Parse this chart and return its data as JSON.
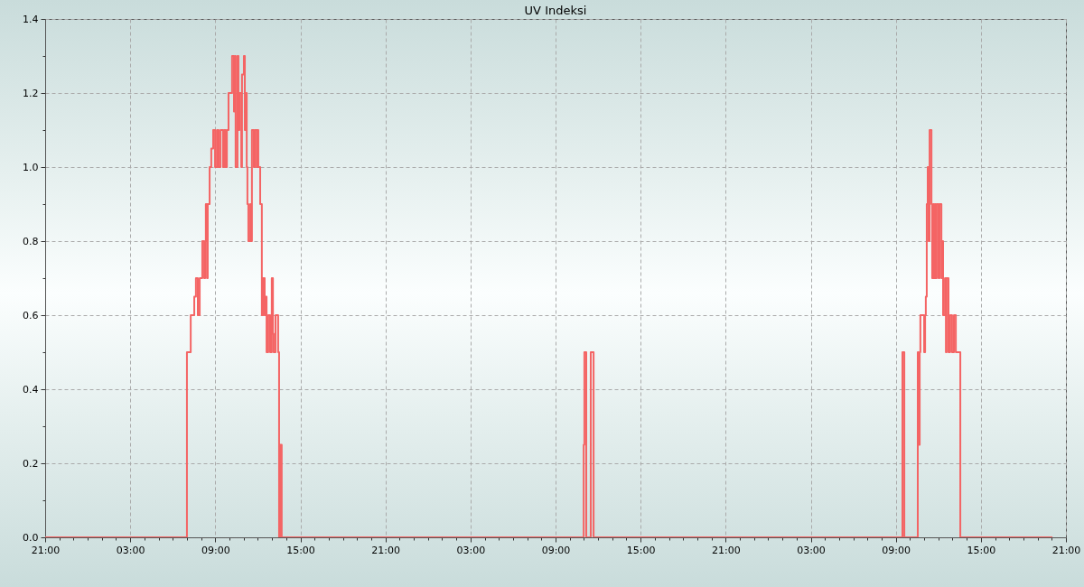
{
  "chart_data": {
    "type": "step",
    "title": "UV Indeksi",
    "x": [
      "--01-01T21:00",
      "--01-02T07:00",
      "--01-02T07:16",
      "--01-02T07:31",
      "--01-02T07:38",
      "--01-02T07:46",
      "--01-02T07:54",
      "--01-02T08:05",
      "--01-02T08:13",
      "--01-02T08:17",
      "--01-02T08:20",
      "--01-02T08:25",
      "--01-02T08:28",
      "--01-02T08:36",
      "--01-02T08:43",
      "--01-02T08:51",
      "--01-02T08:59",
      "--01-02T09:07",
      "--01-02T09:14",
      "--01-02T09:22",
      "--01-02T09:33",
      "--01-02T09:37",
      "--01-02T09:44",
      "--01-02T09:49",
      "--01-02T09:56",
      "--01-02T10:11",
      "--01-02T10:19",
      "--01-02T10:23",
      "--01-02T10:26",
      "--01-02T10:34",
      "--01-02T10:38",
      "--01-02T10:42",
      "--01-02T10:50",
      "--01-02T10:53",
      "--01-02T11:01",
      "--01-02T11:05",
      "--01-02T11:09",
      "--01-02T11:13",
      "--01-02T11:16",
      "--01-02T11:20",
      "--01-02T11:28",
      "--01-02T11:32",
      "--01-02T11:35",
      "--01-02T11:43",
      "--01-02T11:47",
      "--01-02T11:55",
      "--01-02T11:58",
      "--01-02T12:02",
      "--01-02T12:10",
      "--01-02T12:17",
      "--01-02T12:22",
      "--01-02T12:29",
      "--01-02T12:33",
      "--01-02T12:37",
      "--01-02T12:44",
      "--01-02T12:52",
      "--01-02T12:59",
      "--01-02T13:04",
      "--01-02T13:07",
      "--01-02T13:15",
      "--01-02T13:26",
      "--01-02T13:30",
      "--01-02T13:34",
      "--01-02T13:41",
      "--01-03T10:59",
      "--01-03T11:02",
      "--01-03T11:10",
      "--01-03T11:29",
      "--01-03T11:41",
      "--01-04T09:28",
      "--01-04T09:36",
      "--01-04T10:33",
      "--01-04T10:37",
      "--01-04T10:41",
      "--01-04T10:44",
      "--01-04T11:00",
      "--01-04T11:04",
      "--01-04T11:07",
      "--01-04T11:11",
      "--01-04T11:15",
      "--01-04T11:19",
      "--01-04T11:23",
      "--01-04T11:31",
      "--01-04T11:34",
      "--01-04T11:38",
      "--01-04T11:42",
      "--01-04T11:46",
      "--01-04T11:49",
      "--01-04T11:53",
      "--01-04T12:01",
      "--01-04T12:05",
      "--01-04T12:13",
      "--01-04T12:16",
      "--01-04T12:20",
      "--01-04T12:28",
      "--01-04T12:32",
      "--01-04T12:35",
      "--01-04T12:43",
      "--01-04T12:50",
      "--01-04T12:58",
      "--01-04T13:06",
      "--01-04T13:14",
      "--01-04T13:33",
      "--01-04T20:03"
    ],
    "series": [
      {
        "color": "#f46464",
        "values": [
          0,
          0.5,
          0.6,
          0.65,
          0.7,
          0.6,
          0.7,
          0.8,
          0.7,
          0.8,
          0.9,
          0.7,
          0.9,
          1.0,
          1.05,
          1.1,
          1.0,
          1.1,
          1.0,
          1.1,
          1.0,
          1.1,
          1.0,
          1.1,
          1.2,
          1.3,
          1.15,
          1.3,
          1.0,
          1.3,
          1.1,
          1.2,
          1.0,
          1.25,
          1.3,
          1.1,
          1.2,
          1.0,
          0.9,
          0.8,
          0.9,
          0.8,
          1.1,
          1.0,
          1.1,
          1.0,
          1.1,
          1.0,
          0.9,
          0.6,
          0.7,
          0.6,
          0.65,
          0.5,
          0.6,
          0.5,
          0.7,
          0.55,
          0.5,
          0.6,
          0.5,
          0,
          0.25,
          0,
          0.25,
          0.5,
          0,
          0.5,
          0,
          0.5,
          0,
          0.5,
          0.25,
          0.5,
          0.6,
          0.5,
          0.6,
          0.65,
          0.9,
          1.0,
          0.8,
          1.1,
          0.9,
          0.7,
          0.9,
          0.7,
          0.9,
          0.7,
          0.9,
          0.7,
          0.9,
          0.7,
          0.8,
          0.6,
          0.7,
          0.5,
          0.7,
          0.5,
          0.6,
          0.5,
          0.6,
          0.5,
          0,
          0
        ]
      }
    ],
    "xlim": [
      "--01-01T21:00",
      "--01-04T21:00"
    ],
    "xticks": [
      {
        "value": "--01-01T21:00",
        "label": "21:00"
      },
      {
        "value": "--01-01T22:00",
        "label": null
      },
      {
        "value": "--01-01T23:00",
        "label": null
      },
      {
        "value": "--01-02T00:00",
        "label": null
      },
      {
        "value": "--01-02T01:00",
        "label": null
      },
      {
        "value": "--01-02T02:00",
        "label": null
      },
      {
        "value": "--01-02T03:00",
        "label": "03:00"
      },
      {
        "value": "--01-02T04:00",
        "label": null
      },
      {
        "value": "--01-02T05:00",
        "label": null
      },
      {
        "value": "--01-02T06:00",
        "label": null
      },
      {
        "value": "--01-02T07:00",
        "label": null
      },
      {
        "value": "--01-02T08:00",
        "label": null
      },
      {
        "value": "--01-02T09:00",
        "label": "09:00"
      },
      {
        "value": "--01-02T10:00",
        "label": null
      },
      {
        "value": "--01-02T11:00",
        "label": null
      },
      {
        "value": "--01-02T12:00",
        "label": null
      },
      {
        "value": "--01-02T13:00",
        "label": null
      },
      {
        "value": "--01-02T14:00",
        "label": null
      },
      {
        "value": "--01-02T15:00",
        "label": "15:00"
      },
      {
        "value": "--01-02T16:00",
        "label": null
      },
      {
        "value": "--01-02T17:00",
        "label": null
      },
      {
        "value": "--01-02T18:00",
        "label": null
      },
      {
        "value": "--01-02T19:00",
        "label": null
      },
      {
        "value": "--01-02T20:00",
        "label": null
      },
      {
        "value": "--01-02T21:00",
        "label": "21:00"
      },
      {
        "value": "--01-02T22:00",
        "label": null
      },
      {
        "value": "--01-02T23:00",
        "label": null
      },
      {
        "value": "--01-03T00:00",
        "label": null
      },
      {
        "value": "--01-03T01:00",
        "label": null
      },
      {
        "value": "--01-03T02:00",
        "label": null
      },
      {
        "value": "--01-03T03:00",
        "label": "03:00"
      },
      {
        "value": "--01-03T04:00",
        "label": null
      },
      {
        "value": "--01-03T05:00",
        "label": null
      },
      {
        "value": "--01-03T06:00",
        "label": null
      },
      {
        "value": "--01-03T07:00",
        "label": null
      },
      {
        "value": "--01-03T08:00",
        "label": null
      },
      {
        "value": "--01-03T09:00",
        "label": "09:00"
      },
      {
        "value": "--01-03T10:00",
        "label": null
      },
      {
        "value": "--01-03T11:00",
        "label": null
      },
      {
        "value": "--01-03T12:00",
        "label": null
      },
      {
        "value": "--01-03T13:00",
        "label": null
      },
      {
        "value": "--01-03T14:00",
        "label": null
      },
      {
        "value": "--01-03T15:00",
        "label": "15:00"
      },
      {
        "value": "--01-03T16:00",
        "label": null
      },
      {
        "value": "--01-03T17:00",
        "label": null
      },
      {
        "value": "--01-03T18:00",
        "label": null
      },
      {
        "value": "--01-03T19:00",
        "label": null
      },
      {
        "value": "--01-03T20:00",
        "label": null
      },
      {
        "value": "--01-03T21:00",
        "label": "21:00"
      },
      {
        "value": "--01-03T22:00",
        "label": null
      },
      {
        "value": "--01-03T23:00",
        "label": null
      },
      {
        "value": "--01-04T00:00",
        "label": null
      },
      {
        "value": "--01-04T01:00",
        "label": null
      },
      {
        "value": "--01-04T02:00",
        "label": null
      },
      {
        "value": "--01-04T03:00",
        "label": "03:00"
      },
      {
        "value": "--01-04T04:00",
        "label": null
      },
      {
        "value": "--01-04T05:00",
        "label": null
      },
      {
        "value": "--01-04T06:00",
        "label": null
      },
      {
        "value": "--01-04T07:00",
        "label": null
      },
      {
        "value": "--01-04T08:00",
        "label": null
      },
      {
        "value": "--01-04T09:00",
        "label": "09:00"
      },
      {
        "value": "--01-04T10:00",
        "label": null
      },
      {
        "value": "--01-04T11:00",
        "label": null
      },
      {
        "value": "--01-04T12:00",
        "label": null
      },
      {
        "value": "--01-04T13:00",
        "label": null
      },
      {
        "value": "--01-04T14:00",
        "label": null
      },
      {
        "value": "--01-04T15:00",
        "label": "15:00"
      },
      {
        "value": "--01-04T16:00",
        "label": null
      },
      {
        "value": "--01-04T17:00",
        "label": null
      },
      {
        "value": "--01-04T18:00",
        "label": null
      },
      {
        "value": "--01-04T19:00",
        "label": null
      },
      {
        "value": "--01-04T20:00",
        "label": null
      },
      {
        "value": "--01-04T21:00",
        "label": "21:00"
      }
    ],
    "ylim": [
      0,
      1.4
    ],
    "yticks": [
      {
        "value": 0,
        "label": "0.0"
      },
      {
        "value": 0.1,
        "label": null
      },
      {
        "value": 0.2,
        "label": "0.2"
      },
      {
        "value": 0.3,
        "label": null
      },
      {
        "value": 0.4,
        "label": "0.4"
      },
      {
        "value": 0.5,
        "label": null
      },
      {
        "value": 0.6,
        "label": "0.6"
      },
      {
        "value": 0.7,
        "label": null
      },
      {
        "value": 0.8,
        "label": "0.8"
      },
      {
        "value": 0.9,
        "label": null
      },
      {
        "value": 1.0,
        "label": "1.0"
      },
      {
        "value": 1.1,
        "label": null
      },
      {
        "value": 1.2,
        "label": "1.2"
      },
      {
        "value": 1.3,
        "label": null
      },
      {
        "value": 1.4,
        "label": "1.4"
      }
    ],
    "grid": true,
    "line_style": "solid",
    "marker": "none"
  }
}
